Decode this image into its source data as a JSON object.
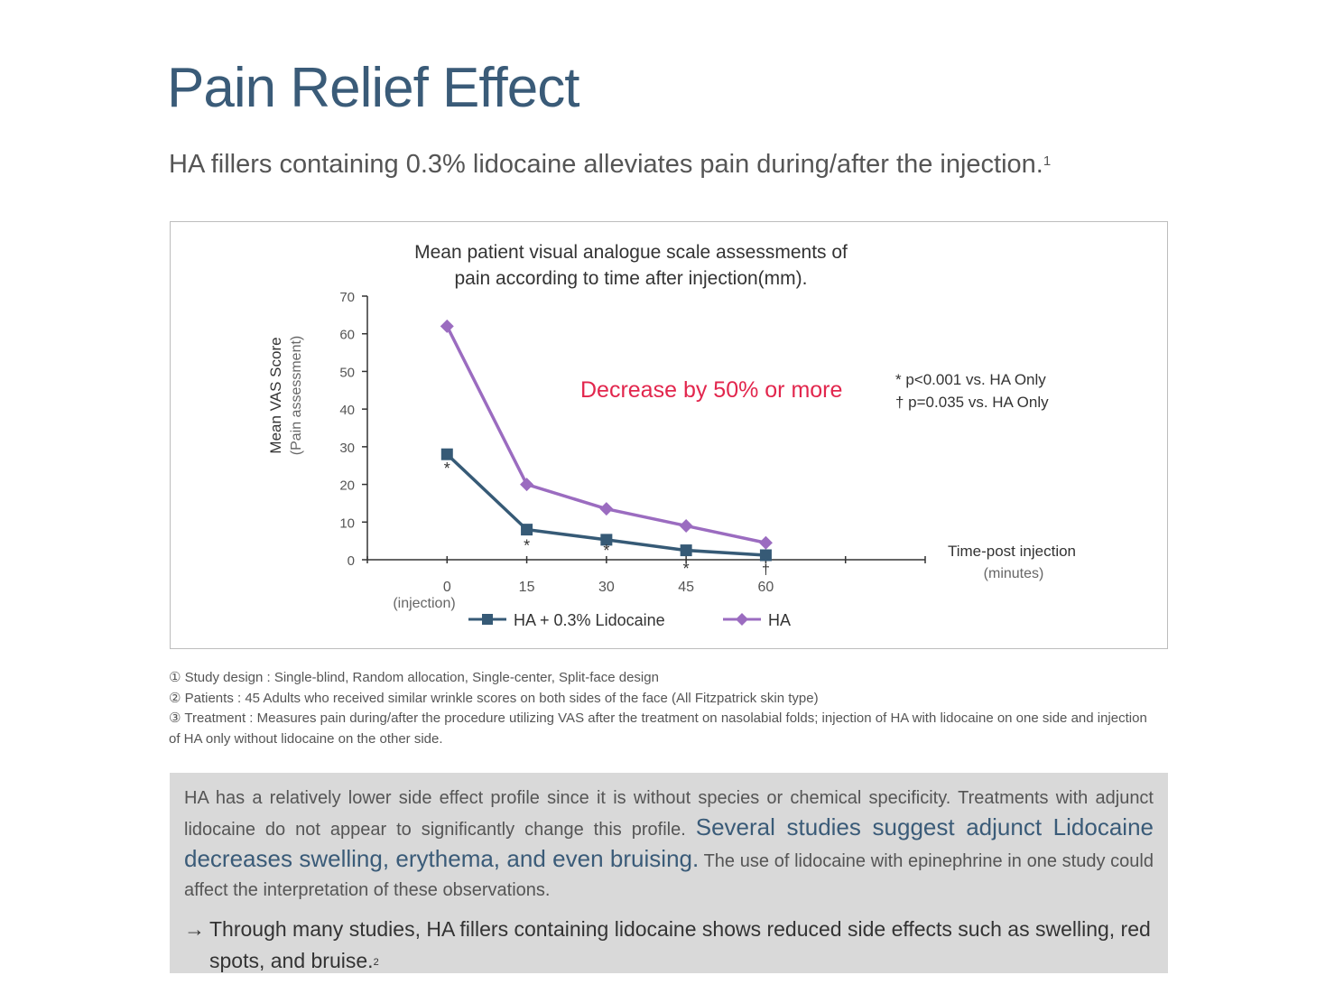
{
  "page": {
    "title": "Pain Relief Effect",
    "subtitle": "HA fillers containing 0.3% lidocaine alleviates pain during/after the injection.",
    "subtitle_ref": "1"
  },
  "chart_data": {
    "type": "line",
    "title_line1": "Mean patient visual analogue scale assessments of",
    "title_line2": "pain according to time after injection(mm).",
    "ylabel": "Mean VAS Score",
    "ylabel_sub": "(Pain assessment)",
    "xlabel": "Time-post injection",
    "xlabel_sub": "(minutes)",
    "x": [
      0,
      15,
      30,
      45,
      60
    ],
    "x_tick_labels": [
      "0",
      "15",
      "30",
      "45",
      "60"
    ],
    "x_tick_sublabel": "(injection)",
    "ylim": [
      0,
      70
    ],
    "y_ticks": [
      0,
      10,
      20,
      30,
      40,
      50,
      60,
      70
    ],
    "series": [
      {
        "name": "HA + 0.3% Lidocaine",
        "values": [
          28,
          8,
          5.3,
          2.5,
          1.2
        ],
        "color": "#365a76",
        "marker": "square",
        "annotations": [
          "*",
          "*",
          "*",
          "*",
          "†"
        ]
      },
      {
        "name": "HA",
        "values": [
          62,
          20,
          13.5,
          9,
          4.5
        ],
        "color": "#9b6cc0",
        "marker": "diamond"
      }
    ],
    "callout": "Decrease by 50% or more",
    "callout_color": "#e2264d",
    "significance": [
      "* p<0.001 vs. HA Only",
      "† p=0.035 vs. HA Only"
    ],
    "grid": false,
    "legend_position": "bottom"
  },
  "notes": [
    "① Study design : Single-blind, Random allocation, Single-center, Split-face design",
    "② Patients : 45 Adults who received similar wrinkle scores on both sides of the face (All Fitzpatrick skin type)",
    "③ Treatment : Measures pain during/after the procedure utilizing VAS after the treatment on nasolabial folds; injection of HA with lidocaine on one side and injection of HA only without lidocaine on the other side."
  ],
  "summary": {
    "text_before": "HA has a relatively lower side effect profile since it is without species or chemical specificity. Treatments with adjunct lidocaine do not appear to significantly change this profile.",
    "highlight": "Several studies suggest adjunct Lidocaine decreases swelling, erythema, and even bruising.",
    "text_after": "The use of lidocaine with epinephrine in one study could affect the interpretation of these observations.",
    "arrow": "→",
    "conclusion": "Through many studies, HA fillers containing lidocaine shows reduced side effects such as swelling, red spots, and bruise.",
    "conclusion_ref": "2"
  }
}
